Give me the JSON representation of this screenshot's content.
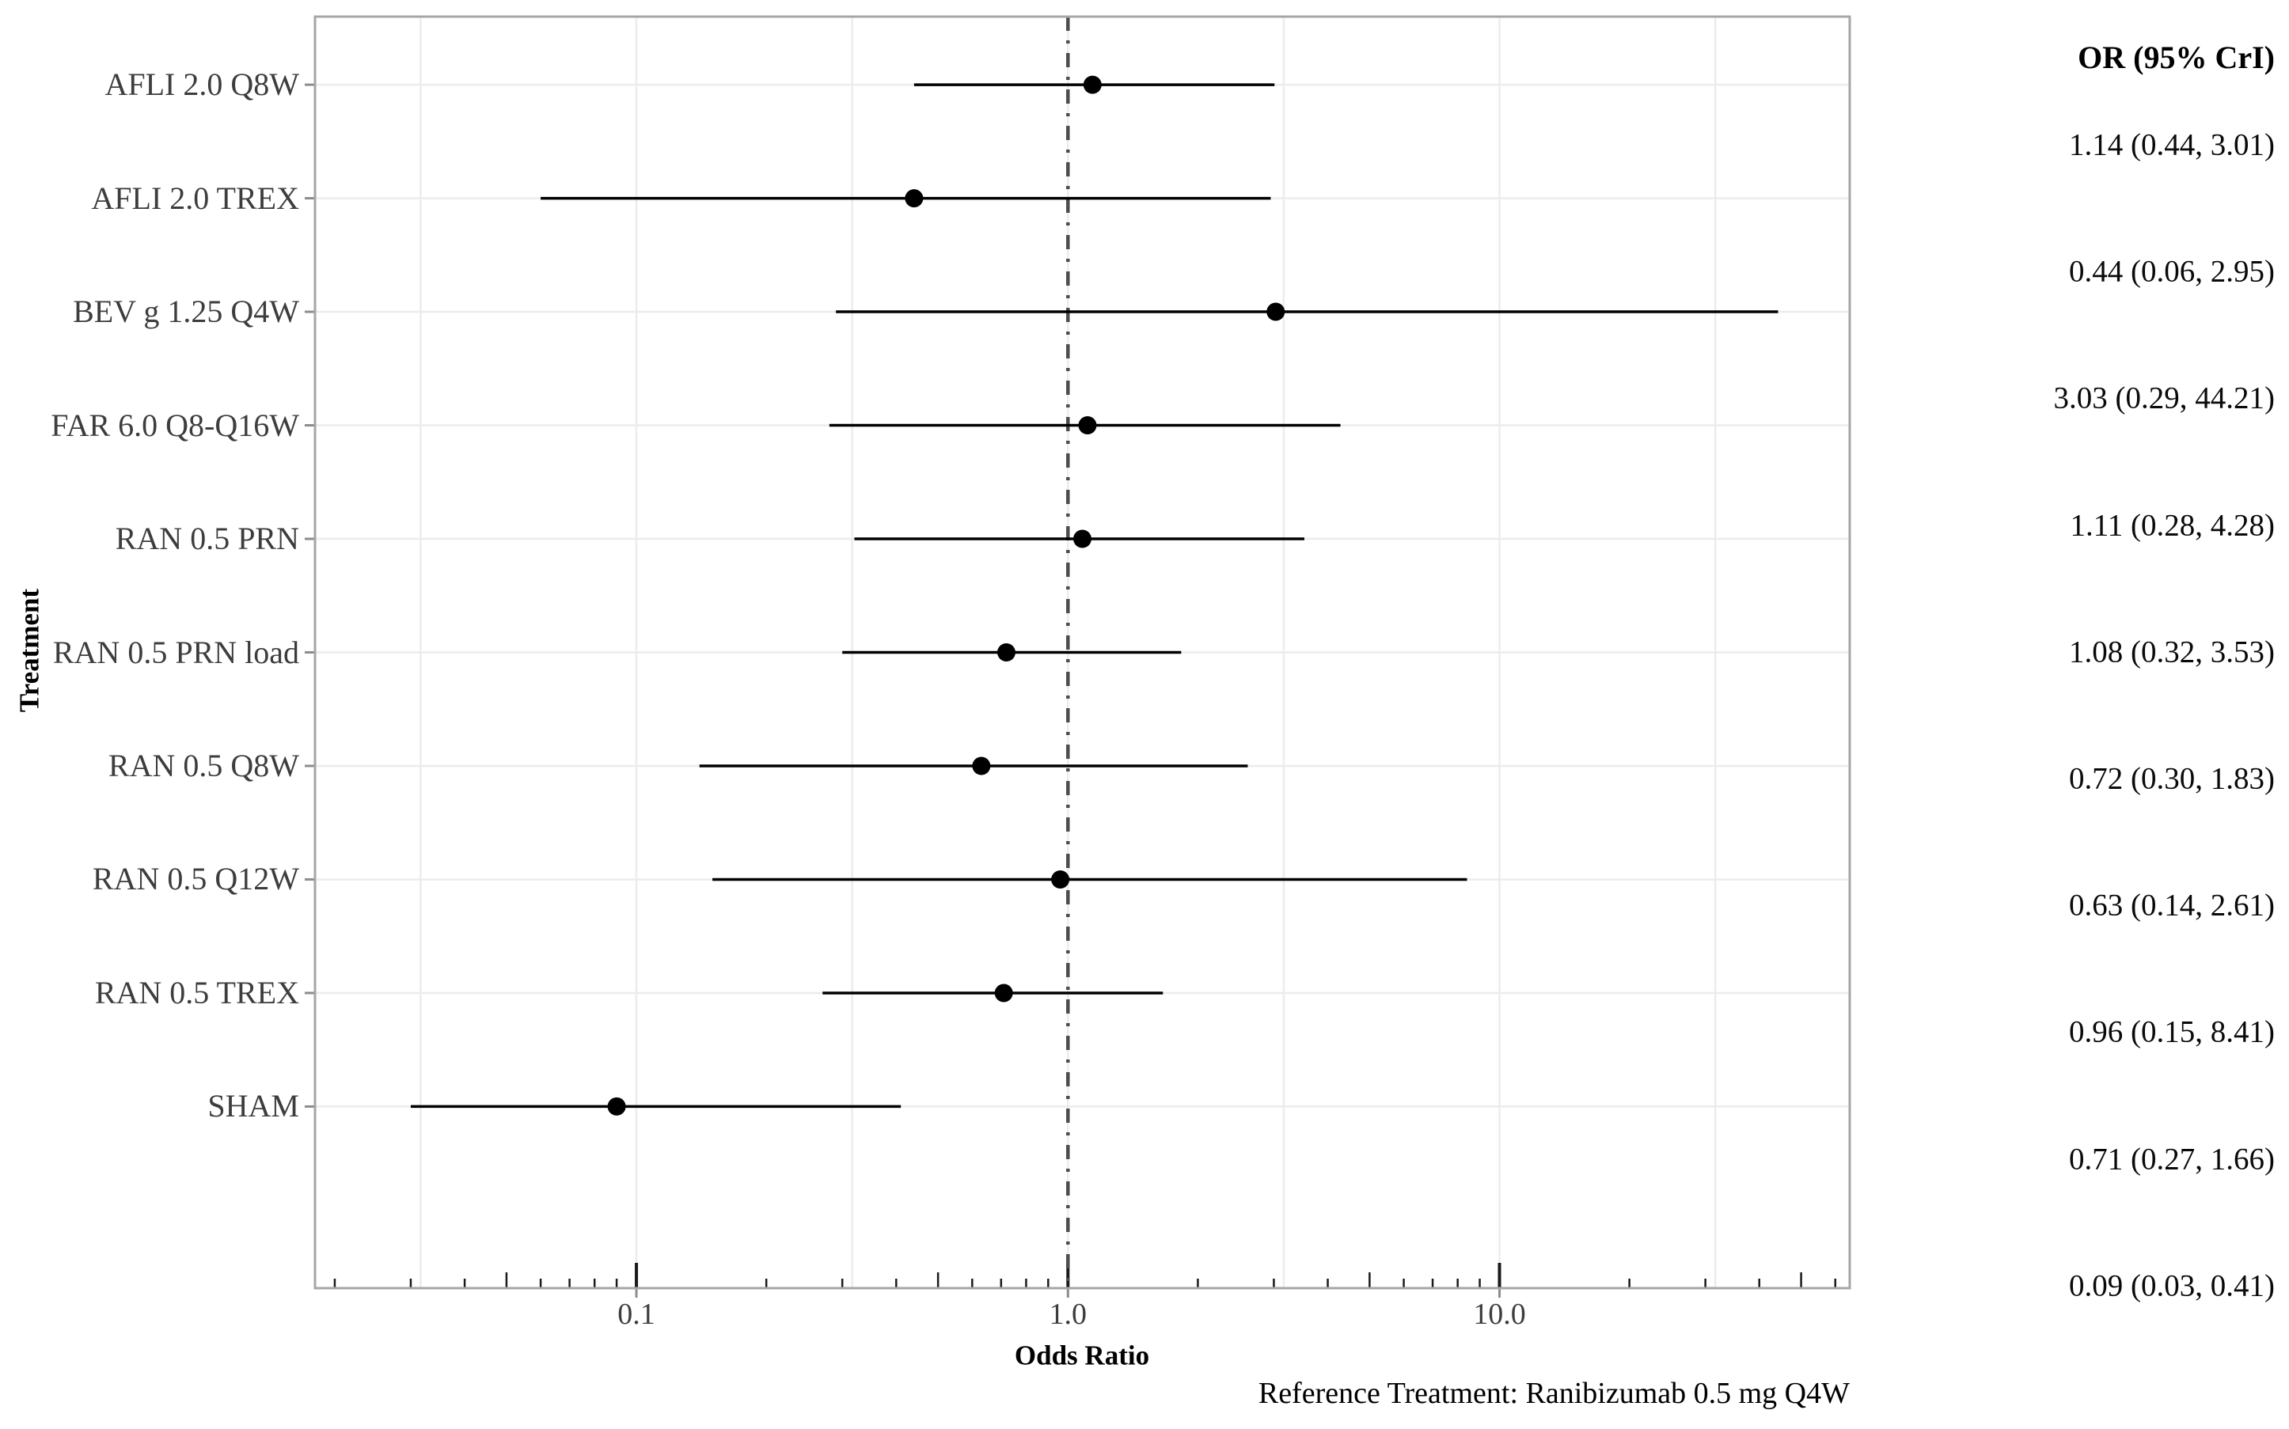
{
  "chart_data": {
    "type": "scatter",
    "subtype": "forest-plot",
    "title": "",
    "xlabel": "Odds Ratio",
    "ylabel": "Treatment",
    "column_header": "OR (95% CrI)",
    "caption": "Reference Treatment: Ranibizumab 0.5 mg Q4W",
    "x_scale": "log10",
    "x_domain": [
      0.018,
      64.8
    ],
    "reference_line": 1.0,
    "grid": "half-decade vertical + per-row horizontal, light gray",
    "legend_position": "none",
    "x_tick_labels": [
      {
        "v": 0.1,
        "label": "0.1"
      },
      {
        "v": 1.0,
        "label": "1.0"
      },
      {
        "v": 10.0,
        "label": "10.0"
      }
    ],
    "rows": [
      {
        "treatment": "AFLI 2.0 Q8W",
        "or": 1.14,
        "low": 0.44,
        "high": 3.01,
        "label": "1.14 (0.44, 3.01)"
      },
      {
        "treatment": "AFLI 2.0 TREX",
        "or": 0.44,
        "low": 0.06,
        "high": 2.95,
        "label": "0.44 (0.06, 2.95)"
      },
      {
        "treatment": "BEV g 1.25 Q4W",
        "or": 3.03,
        "low": 0.29,
        "high": 44.21,
        "label": "3.03 (0.29, 44.21)"
      },
      {
        "treatment": "FAR 6.0 Q8-Q16W",
        "or": 1.11,
        "low": 0.28,
        "high": 4.28,
        "label": "1.11 (0.28, 4.28)"
      },
      {
        "treatment": "RAN 0.5 PRN",
        "or": 1.08,
        "low": 0.32,
        "high": 3.53,
        "label": "1.08 (0.32, 3.53)"
      },
      {
        "treatment": "RAN 0.5 PRN load",
        "or": 0.72,
        "low": 0.3,
        "high": 1.83,
        "label": "0.72 (0.30, 1.83)"
      },
      {
        "treatment": "RAN 0.5 Q8W",
        "or": 0.63,
        "low": 0.14,
        "high": 2.61,
        "label": "0.63 (0.14, 2.61)"
      },
      {
        "treatment": "RAN 0.5 Q12W",
        "or": 0.96,
        "low": 0.15,
        "high": 8.41,
        "label": "0.96 (0.15, 8.41)"
      },
      {
        "treatment": "RAN 0.5 TREX",
        "or": 0.71,
        "low": 0.27,
        "high": 1.66,
        "label": "0.71 (0.27, 1.66)"
      },
      {
        "treatment": "SHAM",
        "or": 0.09,
        "low": 0.03,
        "high": 0.41,
        "label": "0.09 (0.03, 0.41)"
      }
    ],
    "style": {
      "point_color": "#000000",
      "interval_color": "#000000",
      "reference_line_color": "#4d4d4d",
      "grid_color": "#ececec",
      "panel_border_color": "#a6a6a6",
      "axis_tick_color": "#8c8c8c",
      "log_tick_color": "#1a1a1a",
      "axis_text_color": "#3d3d3d",
      "background": "#ffffff"
    }
  }
}
